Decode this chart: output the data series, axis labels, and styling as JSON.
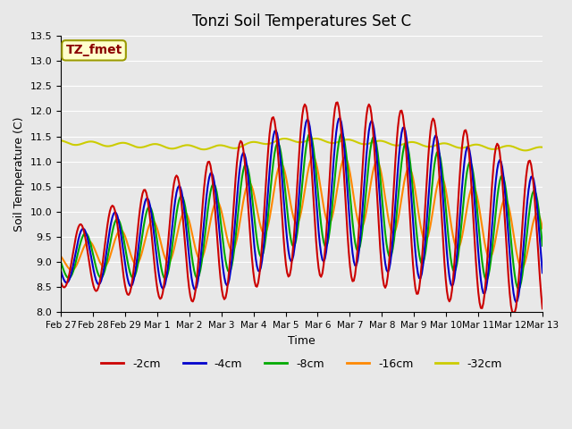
{
  "title": "Tonzi Soil Temperatures Set C",
  "xlabel": "Time",
  "ylabel": "Soil Temperature (C)",
  "ylim": [
    8.0,
    13.5
  ],
  "plot_bg_color": "#e8e8e8",
  "annotation_text": "TZ_fmet",
  "annotation_color": "#8b0000",
  "annotation_bg": "#ffffcc",
  "annotation_border": "#999900",
  "series": {
    "-2cm": {
      "color": "#cc0000",
      "lw": 1.5
    },
    "-4cm": {
      "color": "#0000cc",
      "lw": 1.5
    },
    "-8cm": {
      "color": "#00aa00",
      "lw": 1.5
    },
    "-16cm": {
      "color": "#ff8800",
      "lw": 1.5
    },
    "-32cm": {
      "color": "#cccc00",
      "lw": 1.5
    }
  },
  "xtick_labels": [
    "Feb 27",
    "Feb 28",
    "Feb 29",
    "Mar 1",
    "Mar 2",
    "Mar 3",
    "Mar 4",
    "Mar 5",
    "Mar 6",
    "Mar 7",
    "Mar 8",
    "Mar 9",
    "Mar 10",
    "Mar 11",
    "Mar 12",
    "Mar 13"
  ],
  "yticks": [
    8.0,
    8.5,
    9.0,
    9.5,
    10.0,
    10.5,
    11.0,
    11.5,
    12.0,
    12.5,
    13.0,
    13.5
  ],
  "n_points": 384
}
